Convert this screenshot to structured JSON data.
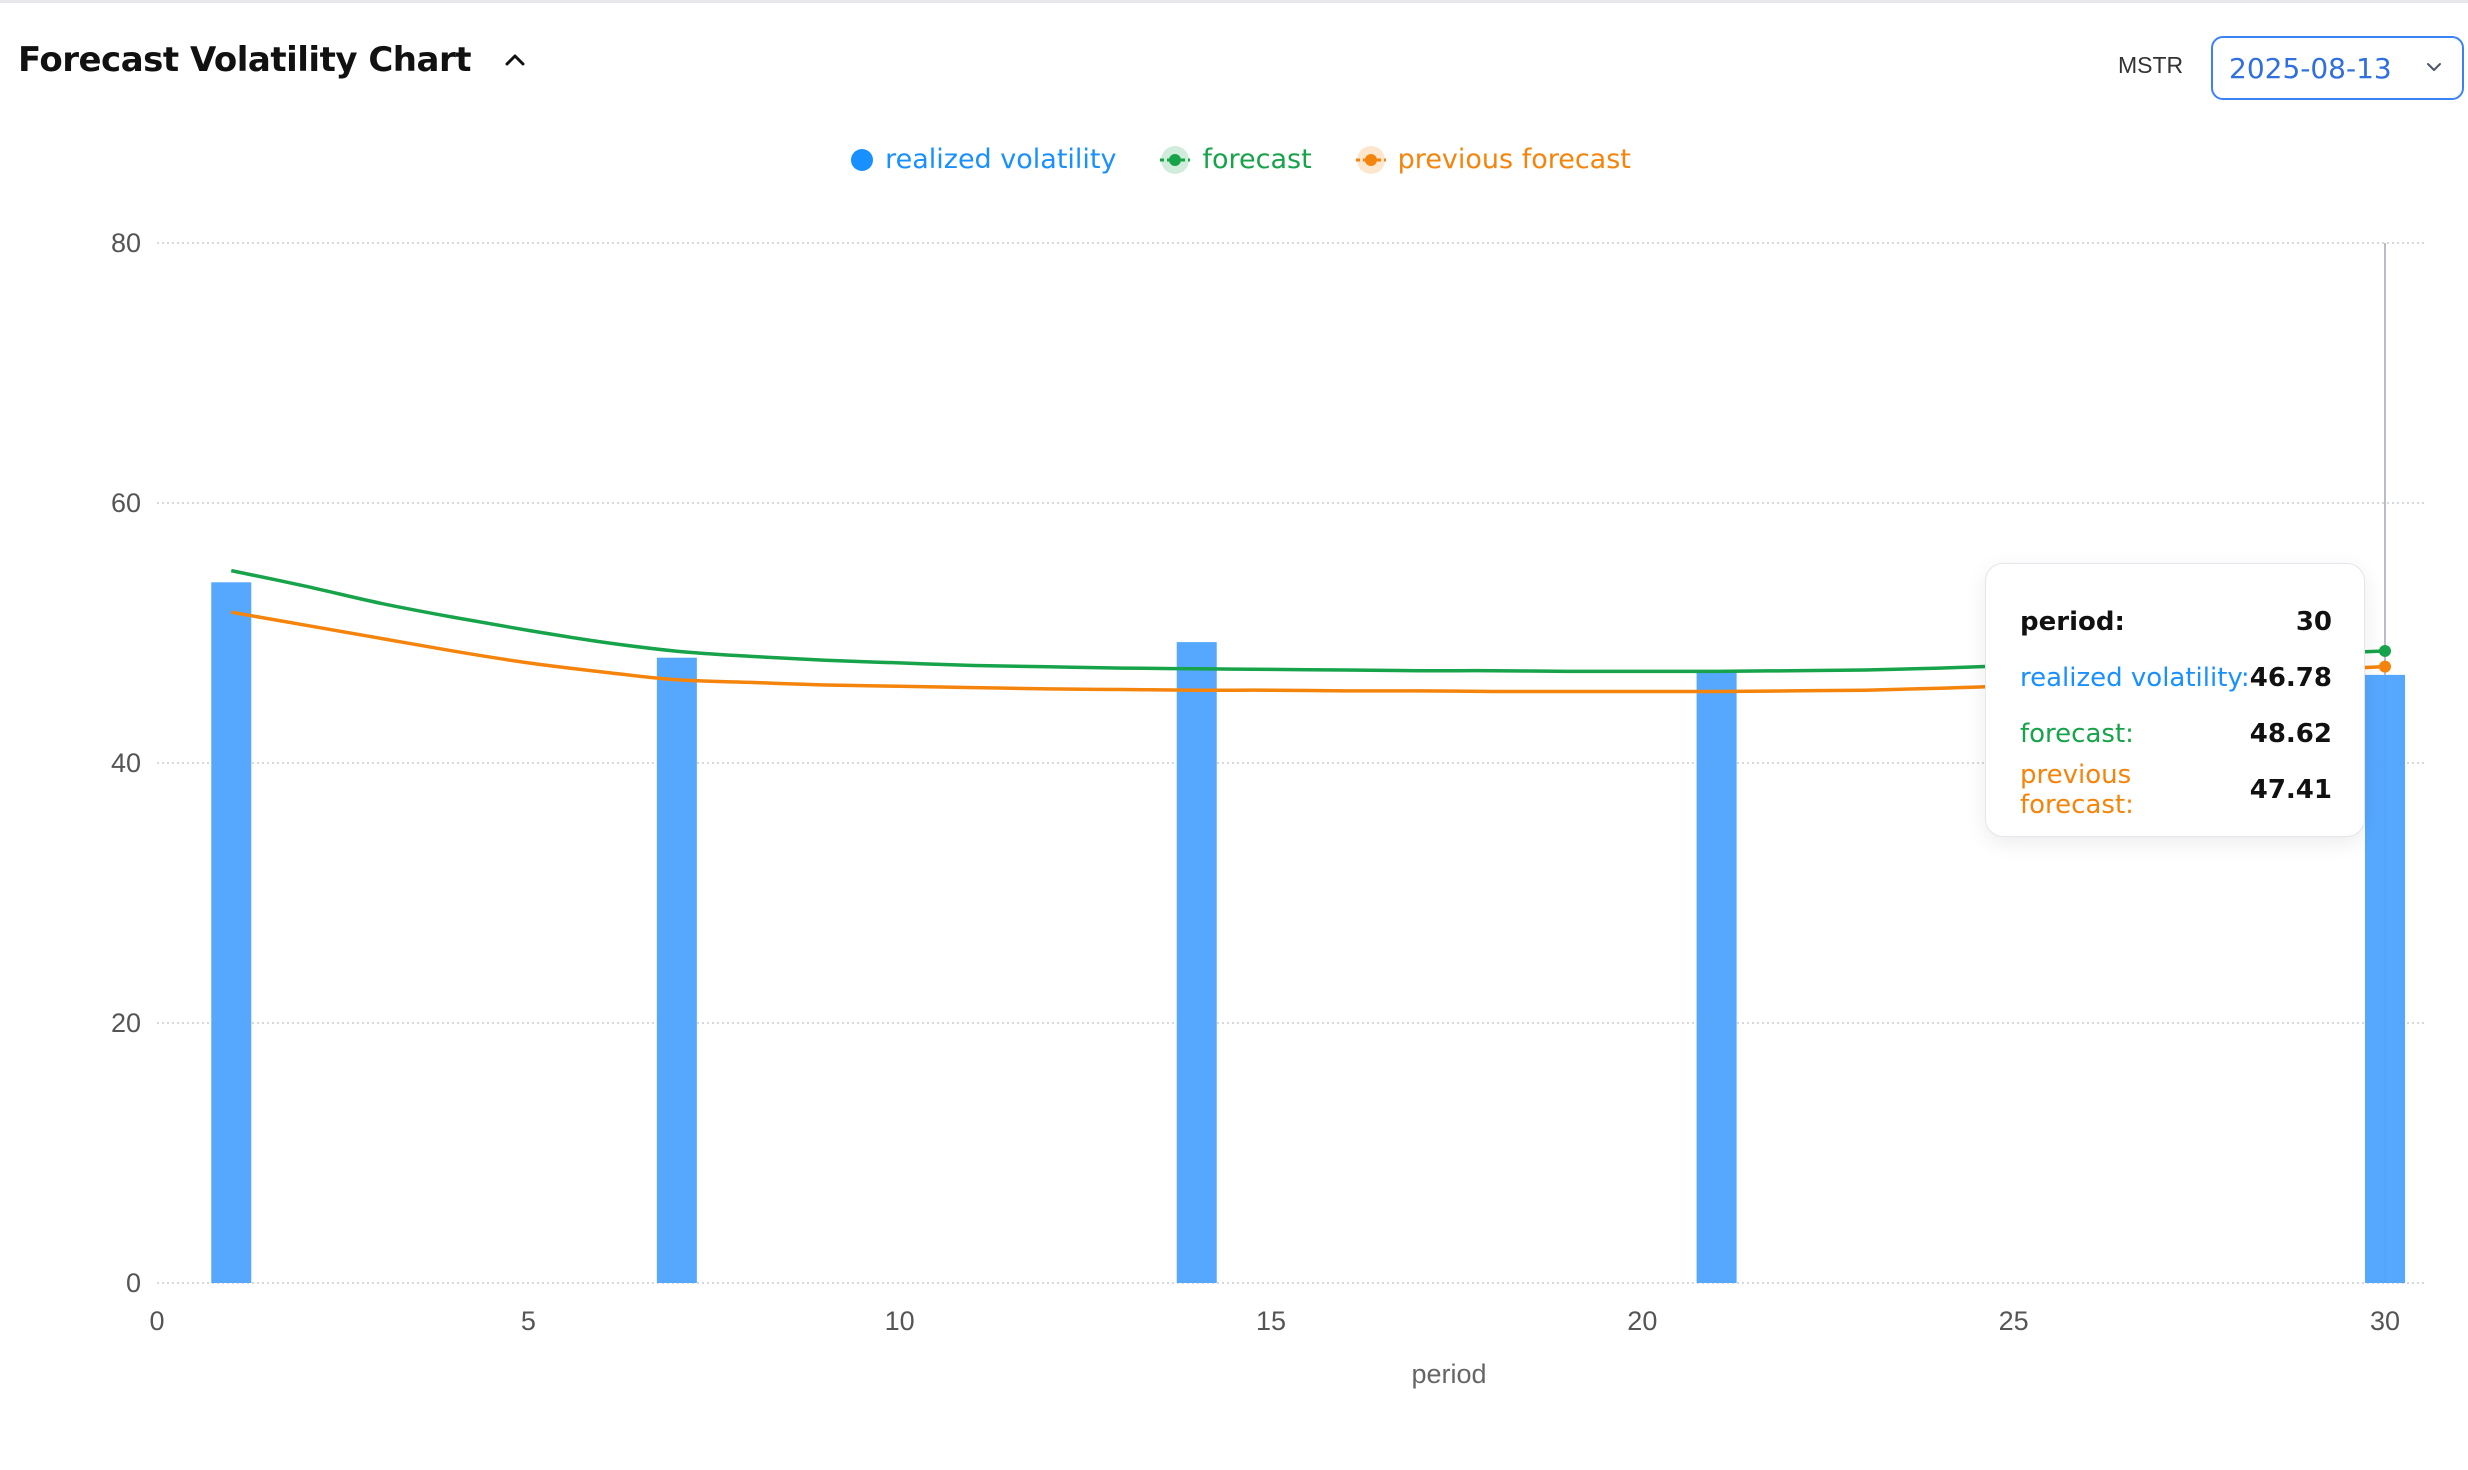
{
  "header": {
    "title": "Forecast Volatility Chart",
    "ticker": "MSTR",
    "date": "2025-08-13"
  },
  "legend": [
    {
      "label": "realized volatility",
      "color": "#1890ff",
      "icon": "dot-icon"
    },
    {
      "label": "forecast",
      "color": "#16a34a",
      "icon": "line-dot-icon"
    },
    {
      "label": "previous forecast",
      "color": "#f5840c",
      "icon": "line-dot-icon"
    }
  ],
  "tooltip": {
    "period_label": "period:",
    "period_value": "30",
    "realized_label": "realized volatility:",
    "realized_value": "46.78",
    "forecast_label": "forecast:",
    "forecast_value": "48.62",
    "prev_label": "previous forecast:",
    "prev_value": "47.41"
  },
  "chart_data": {
    "type": "bar",
    "xlabel": "period",
    "ylabel": "",
    "xlim": [
      0,
      30
    ],
    "ylim": [
      0,
      80
    ],
    "xticks": [
      0,
      5,
      10,
      15,
      20,
      25,
      30
    ],
    "yticks": [
      0,
      20,
      40,
      60,
      80
    ],
    "grid": true,
    "legend_position": "top-center",
    "series": [
      {
        "name": "realized volatility",
        "type": "bar",
        "color": "#4da3ff",
        "x": [
          1,
          7,
          14,
          21,
          30
        ],
        "values": [
          53.9,
          48.1,
          49.3,
          47.0,
          46.78
        ]
      },
      {
        "name": "forecast",
        "type": "line",
        "color": "#16a34a",
        "x": [
          1,
          2,
          3,
          4,
          5,
          6,
          7,
          8,
          9,
          10,
          11,
          12,
          13,
          14,
          15,
          16,
          17,
          18,
          19,
          20,
          21,
          22,
          23,
          24,
          25,
          26,
          27,
          28,
          29,
          30
        ],
        "values": [
          54.8,
          53.6,
          52.3,
          51.2,
          50.2,
          49.3,
          48.6,
          48.2,
          47.9,
          47.7,
          47.5,
          47.4,
          47.3,
          47.25,
          47.2,
          47.15,
          47.1,
          47.1,
          47.05,
          47.05,
          47.05,
          47.1,
          47.15,
          47.3,
          47.5,
          47.8,
          48.0,
          48.2,
          48.4,
          48.62
        ]
      },
      {
        "name": "previous forecast",
        "type": "line",
        "color": "#f5840c",
        "x": [
          1,
          2,
          3,
          4,
          5,
          6,
          7,
          8,
          9,
          10,
          11,
          12,
          13,
          14,
          15,
          16,
          17,
          18,
          19,
          20,
          21,
          22,
          23,
          24,
          25,
          26,
          27,
          28,
          29,
          30
        ],
        "values": [
          51.6,
          50.6,
          49.6,
          48.6,
          47.7,
          47.0,
          46.4,
          46.2,
          46.0,
          45.9,
          45.8,
          45.7,
          45.65,
          45.6,
          45.6,
          45.55,
          45.55,
          45.5,
          45.5,
          45.5,
          45.5,
          45.55,
          45.6,
          45.75,
          45.95,
          46.3,
          46.6,
          46.9,
          47.15,
          47.41
        ]
      }
    ],
    "hover": {
      "x": 30
    }
  }
}
